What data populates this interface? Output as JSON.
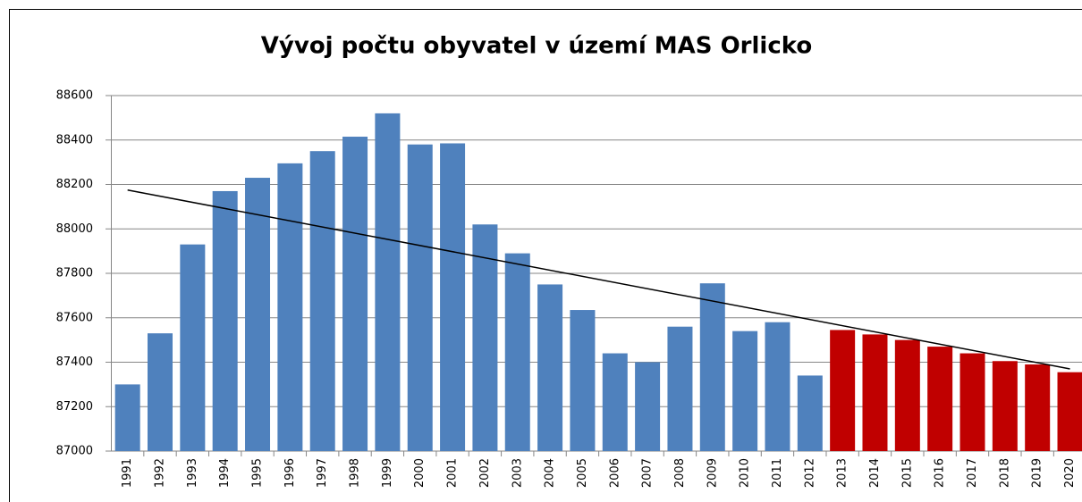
{
  "chart_data": {
    "type": "bar",
    "title": "Vývoj počtu obyvatel v území MAS Orlicko",
    "categories": [
      "1991",
      "1992",
      "1993",
      "1994",
      "1995",
      "1996",
      "1997",
      "1998",
      "1999",
      "2000",
      "2001",
      "2002",
      "2003",
      "2004",
      "2005",
      "2006",
      "2007",
      "2008",
      "2009",
      "2010",
      "2011",
      "2012",
      "2013",
      "2014",
      "2015",
      "2016",
      "2017",
      "2018",
      "2019",
      "2020"
    ],
    "values": [
      87300,
      87530,
      87930,
      88170,
      88230,
      88295,
      88350,
      88415,
      88520,
      88380,
      88385,
      88020,
      87890,
      87750,
      87635,
      87440,
      87400,
      87560,
      87755,
      87540,
      87580,
      87340,
      87545,
      87525,
      87500,
      87470,
      87440,
      87405,
      87390,
      87355
    ],
    "colors": [
      "#4f81bd",
      "#4f81bd",
      "#4f81bd",
      "#4f81bd",
      "#4f81bd",
      "#4f81bd",
      "#4f81bd",
      "#4f81bd",
      "#4f81bd",
      "#4f81bd",
      "#4f81bd",
      "#4f81bd",
      "#4f81bd",
      "#4f81bd",
      "#4f81bd",
      "#4f81bd",
      "#4f81bd",
      "#4f81bd",
      "#4f81bd",
      "#4f81bd",
      "#4f81bd",
      "#4f81bd",
      "#c00000",
      "#c00000",
      "#c00000",
      "#c00000",
      "#c00000",
      "#c00000",
      "#c00000",
      "#c00000"
    ],
    "trendline": [
      88175,
      87370
    ],
    "ylim": [
      87000,
      88600
    ],
    "yticks": [
      87000,
      87200,
      87400,
      87600,
      87800,
      88000,
      88200,
      88400,
      88600
    ],
    "grid": true
  }
}
